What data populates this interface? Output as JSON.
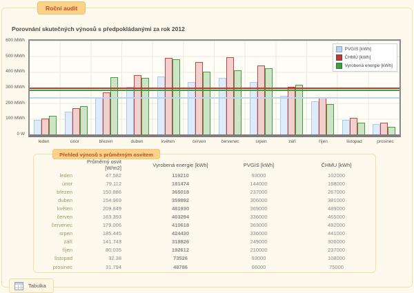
{
  "tab": {
    "label": "Roční audit"
  },
  "title": "Porovnání skutečných výnosů s předpokládanými za rok 2012",
  "chart_data": {
    "type": "bar",
    "title": "Porovnání skutečných výnosů s předpokládanými za rok 2012",
    "ylim": [
      0,
      600
    ],
    "y_unit": "MWh",
    "y_ticks": [
      "600 MWh",
      "500 MWh",
      "400 MWh",
      "300 MWh",
      "200 MWh",
      "100 MWh",
      "0 W"
    ],
    "grid": true,
    "legend_position": "top-right",
    "categories": [
      "leden",
      "únor",
      "březen",
      "duben",
      "květen",
      "červen",
      "červenec",
      "srpen",
      "září",
      "říjen",
      "listopad",
      "prosinec"
    ],
    "series": [
      {
        "name": "PVGIS [kWh]",
        "border_color": "#a9c9ec",
        "fill_color": "#ddebfa",
        "legend_color": "#b3d6f4",
        "values_mwh": [
          93,
          144,
          237,
          306,
          369,
          336,
          363,
          336,
          249,
          210,
          93,
          66
        ]
      },
      {
        "name": "ČHMÚ [kWh]",
        "border_color": "#c2423e",
        "fill_color": "#f1d0cd",
        "legend_color": "#b23f3b",
        "values_mwh": [
          102,
          168,
          267,
          381,
          489,
          465,
          492,
          441,
          306,
          237,
          108,
          75
        ]
      },
      {
        "name": "Vyrobená energie [kWh]",
        "border_color": "#3f9e3f",
        "fill_color": "#cfe4c6",
        "legend_color": "#3f9e3f",
        "values_mwh": [
          119.21,
          181.474,
          365.018,
          359.892,
          481.93,
          403.294,
          410.618,
          424.43,
          318.826,
          192.612,
          73.526,
          48.786
        ]
      }
    ],
    "average_lines": [
      {
        "series": "PVGIS [kWh]",
        "value_mwh": 233.5,
        "color": "#b9d4f0"
      },
      {
        "series": "Vyrobená energie [kWh]",
        "value_mwh": 281.6,
        "color": "#3f9e3f"
      },
      {
        "series": "ČHMÚ [kWh]",
        "value_mwh": 294.25,
        "color": "#c0392b"
      }
    ]
  },
  "table": {
    "badge": "Přehled výnosů s průměrným osvitem",
    "headers": {
      "month": "",
      "osvit": "Průměrný osvit [W/m2]",
      "vyrobena": "Vyrobená energie [kWh]",
      "pvgis": "PVGIS [kWh]",
      "chmu": "ČHMU [kWh]"
    },
    "rows": [
      {
        "month": "leden",
        "osvit": "47.582",
        "vyrobena": "119210",
        "pvgis": "93000",
        "chmu": "102000"
      },
      {
        "month": "únor",
        "osvit": "79.112",
        "vyrobena": "181474",
        "pvgis": "144000",
        "chmu": "168000"
      },
      {
        "month": "březen",
        "osvit": "150.886",
        "vyrobena": "365018",
        "pvgis": "237000",
        "chmu": "267000"
      },
      {
        "month": "duben",
        "osvit": "154.969",
        "vyrobena": "359892",
        "pvgis": "306000",
        "chmu": "381000"
      },
      {
        "month": "květen",
        "osvit": "209.849",
        "vyrobena": "481930",
        "pvgis": "369000",
        "chmu": "489000"
      },
      {
        "month": "červen",
        "osvit": "183.393",
        "vyrobena": "403294",
        "pvgis": "336000",
        "chmu": "465000"
      },
      {
        "month": "červenec",
        "osvit": "179.006",
        "vyrobena": "410618",
        "pvgis": "363000",
        "chmu": "492000"
      },
      {
        "month": "srpen",
        "osvit": "185.445",
        "vyrobena": "424430",
        "pvgis": "336000",
        "chmu": "441000"
      },
      {
        "month": "září",
        "osvit": "141.743",
        "vyrobena": "318826",
        "pvgis": "249000",
        "chmu": "306000"
      },
      {
        "month": "říjen",
        "osvit": "80.035",
        "vyrobena": "192612",
        "pvgis": "210000",
        "chmu": "237000"
      },
      {
        "month": "listopad",
        "osvit": "32.38",
        "vyrobena": "73526",
        "pvgis": "93000",
        "chmu": "108000"
      },
      {
        "month": "prosinec",
        "osvit": "31.794",
        "vyrobena": "48786",
        "pvgis": "66000",
        "chmu": "75000"
      }
    ]
  },
  "footer": {
    "table_button": "Tabulka",
    "table_button_icon": "table-icon"
  },
  "colors": {
    "panel_background": "#fdf9ec",
    "panel_border": "#f1deab",
    "tab_background": "#fbd388",
    "tab_text": "#c0492b",
    "value_above_prediction": "#3c9e3c",
    "value_below_prediction": "#cc3333",
    "month_link": "#9a9a64"
  }
}
